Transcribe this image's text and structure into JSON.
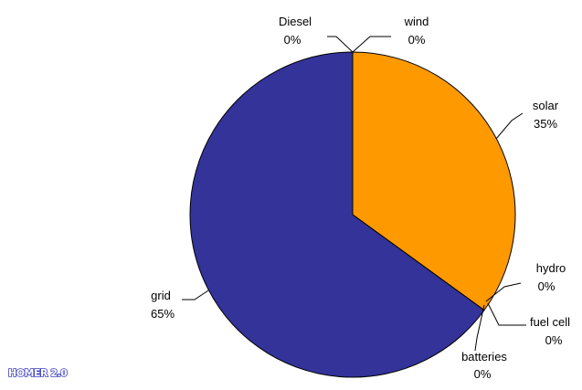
{
  "chart_data": {
    "type": "pie",
    "title": "",
    "start": "top",
    "direction": "clockwise",
    "slices": [
      {
        "label": "wind",
        "value": 0,
        "value_label": "0%",
        "color": "#ff9900"
      },
      {
        "label": "solar",
        "value": 35,
        "value_label": "35%",
        "color": "#ff9900"
      },
      {
        "label": "hydro",
        "value": 0,
        "value_label": "0%",
        "color": "#33cc66"
      },
      {
        "label": "fuel cell",
        "value": 0,
        "value_label": "0%",
        "color": "#cc3333"
      },
      {
        "label": "batteries",
        "value": 0,
        "value_label": "0%",
        "color": "#999999"
      },
      {
        "label": "grid",
        "value": 65,
        "value_label": "65%",
        "color": "#333399"
      },
      {
        "label": "Diesel",
        "value": 0,
        "value_label": "0%",
        "color": "#cc9933"
      }
    ]
  },
  "watermark": {
    "text": "HOMER 2.0",
    "color": "#3b3dbf"
  }
}
